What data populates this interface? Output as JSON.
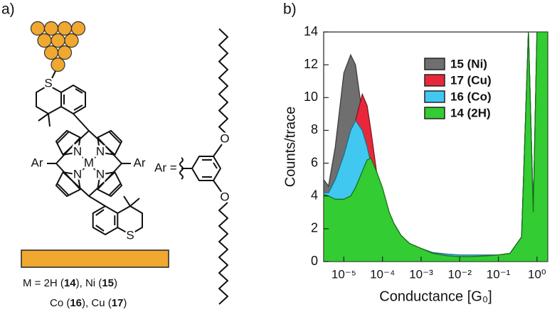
{
  "panel_a": {
    "label": "a)",
    "caption_1": [
      "M = 2H (",
      "14",
      "), Ni (",
      "15",
      ")"
    ],
    "caption_2": [
      "Co (",
      "16",
      "), Cu (",
      "17",
      ")"
    ],
    "ar_definition": "Ar =",
    "atoms": [
      "S",
      "S",
      "N",
      "N",
      "N",
      "N",
      "M",
      "Ar",
      "Ar",
      "O",
      "O"
    ]
  },
  "panel_b_label": "b)",
  "chart_data": {
    "type": "area",
    "xlabel": "Conductance [G₀]",
    "ylabel": "Counts/trace",
    "xscale": "log",
    "xlim": [
      3e-06,
      1.9
    ],
    "ylim": [
      0,
      14
    ],
    "xticks": [
      {
        "value": 1e-05,
        "label": "10⁻⁵"
      },
      {
        "value": 0.0001,
        "label": "10⁻⁴"
      },
      {
        "value": 0.001,
        "label": "10⁻³"
      },
      {
        "value": 0.01,
        "label": "10⁻²"
      },
      {
        "value": 0.1,
        "label": "10⁻¹"
      },
      {
        "value": 1,
        "label": "10⁰"
      }
    ],
    "yticks": [
      0,
      2,
      4,
      6,
      8,
      10,
      12,
      14
    ],
    "legend": "upper right",
    "x": [
      3e-06,
      4e-06,
      6e-06,
      1e-05,
      1.5e-05,
      2e-05,
      3e-05,
      4e-05,
      5e-05,
      7e-05,
      0.0001,
      0.00015,
      0.0002,
      0.0003,
      0.0005,
      0.001,
      0.002,
      0.005,
      0.01,
      0.02,
      0.05,
      0.1,
      0.2,
      0.4,
      0.6,
      0.8,
      1,
      1.3,
      1.6,
      1.9
    ],
    "series": [
      {
        "name": "15 (Ni)",
        "color": "#6f6f6f",
        "values": [
          5,
          4.6,
          7,
          11.5,
          12.6,
          12,
          9,
          6.2,
          4.8,
          3.6,
          3.2,
          2.5,
          2.3,
          1.6,
          1.1,
          0.8,
          0.5,
          0.35,
          0.3,
          0.3,
          0.35,
          0.4,
          0.5,
          1.5,
          14,
          3,
          14,
          14,
          14,
          14
        ]
      },
      {
        "name": "17 (Cu)",
        "color": "#e8283a",
        "values": [
          4.2,
          4.2,
          4.8,
          5.5,
          7.5,
          8.6,
          10.2,
          9.5,
          8,
          5.5,
          3.5,
          2.5,
          2.3,
          1.6,
          1.1,
          0.8,
          0.5,
          0.35,
          0.3,
          0.3,
          0.35,
          0.4,
          0.5,
          1.5,
          14,
          3,
          14,
          14,
          14,
          14
        ]
      },
      {
        "name": "16 (Co)",
        "color": "#40c8f0",
        "values": [
          4.2,
          4.2,
          5,
          6.5,
          8,
          8.6,
          8,
          7,
          6,
          4.5,
          3.2,
          2.5,
          2.3,
          1.6,
          1.1,
          0.8,
          0.55,
          0.45,
          0.4,
          0.4,
          0.4,
          0.4,
          0.5,
          1.5,
          14,
          3,
          14,
          14,
          14,
          14
        ]
      },
      {
        "name": "14 (2H)",
        "color": "#33cc33",
        "values": [
          4.1,
          4,
          3.8,
          3.8,
          4,
          4.5,
          5.5,
          6.2,
          6.3,
          5.5,
          4.5,
          3,
          2.3,
          1.6,
          1.1,
          0.8,
          0.5,
          0.35,
          0.3,
          0.3,
          0.35,
          0.4,
          0.5,
          1.5,
          14,
          3,
          14,
          14,
          14,
          14
        ]
      }
    ]
  }
}
